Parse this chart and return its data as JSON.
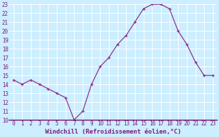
{
  "x": [
    0,
    1,
    2,
    3,
    4,
    5,
    6,
    7,
    8,
    9,
    10,
    11,
    12,
    13,
    14,
    15,
    16,
    17,
    18,
    19,
    20,
    21,
    22,
    23
  ],
  "y": [
    14.5,
    14.0,
    14.5,
    14.0,
    13.5,
    13.0,
    12.5,
    10.0,
    11.0,
    14.0,
    16.0,
    17.0,
    18.5,
    19.5,
    21.0,
    22.5,
    23.0,
    23.0,
    22.5,
    20.0,
    18.5,
    16.5,
    15.0,
    15.0
  ],
  "line_color": "#8b2f8b",
  "background_color": "#cceeff",
  "grid_color": "#ffffff",
  "xlabel": "Windchill (Refroidissement éolien,°C)",
  "ylim": [
    10,
    23
  ],
  "xlim": [
    -0.5,
    23.5
  ],
  "yticks": [
    10,
    11,
    12,
    13,
    14,
    15,
    16,
    17,
    18,
    19,
    20,
    21,
    22,
    23
  ],
  "xticks": [
    0,
    1,
    2,
    3,
    4,
    5,
    6,
    7,
    8,
    9,
    10,
    11,
    12,
    13,
    14,
    15,
    16,
    17,
    18,
    19,
    20,
    21,
    22,
    23
  ],
  "tick_fontsize": 5.5,
  "xlabel_fontsize": 6.5
}
